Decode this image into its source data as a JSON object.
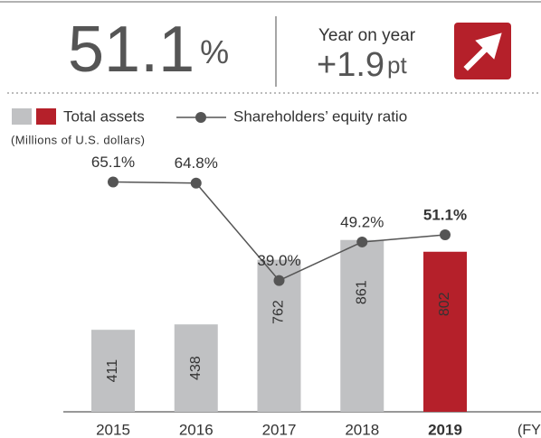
{
  "kpi": {
    "value": "51.1",
    "unit": "%",
    "change_label": "Year on year",
    "change": "+1.9",
    "change_unit": "pt"
  },
  "chart_data": {
    "type": "bar_line",
    "unit_note": "(Millions of U.S. dollars)",
    "x_unit": "(FY)",
    "categories": [
      "2015",
      "2016",
      "2017",
      "2018",
      "2019"
    ],
    "series": [
      {
        "name": "Total assets",
        "type": "bar",
        "colors": [
          "#c0c1c3",
          "#c0c1c3",
          "#c0c1c3",
          "#c0c1c3",
          "#b5202a"
        ],
        "values": [
          411,
          438,
          762,
          861,
          802
        ]
      },
      {
        "name": "Shareholders’ equity ratio",
        "type": "line",
        "axis": "y2",
        "color": "#555555",
        "values": [
          65.1,
          64.8,
          39.0,
          49.2,
          51.1
        ],
        "value_labels": [
          "65.1%",
          "64.8%",
          "39.0%",
          "49.2%",
          "51.1%"
        ]
      }
    ],
    "ylim": [
      0,
      1000
    ],
    "y2lim": [
      20,
      70
    ]
  }
}
